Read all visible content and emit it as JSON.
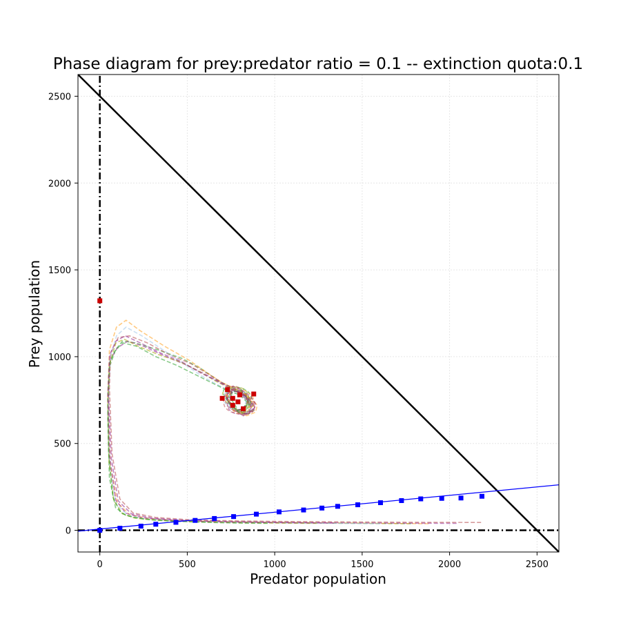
{
  "chart_data": {
    "type": "line",
    "title": "Phase diagram for prey:predator ratio = 0.1 -- extinction quota:0.1",
    "xlabel": "Predator population",
    "ylabel": "Prey population",
    "xlim": [
      -125,
      2625
    ],
    "ylim": [
      -125,
      2625
    ],
    "xticks": [
      0,
      500,
      1000,
      1500,
      2000,
      2500
    ],
    "yticks": [
      0,
      500,
      1000,
      1500,
      2000,
      2500
    ],
    "xtick_labels": [
      "0",
      "500",
      "1000",
      "1500",
      "2000",
      "2500"
    ],
    "ytick_labels": [
      "0",
      "500",
      "1000",
      "1500",
      "2000",
      "2500"
    ],
    "grid": true,
    "reference_lines": [
      {
        "name": "x = 0",
        "style": "dash-dot",
        "color": "#000000",
        "x": [
          0,
          0
        ],
        "y": [
          -125,
          2625
        ]
      },
      {
        "name": "y = 0",
        "style": "dash-dot",
        "color": "#000000",
        "x": [
          -125,
          2625
        ],
        "y": [
          0,
          0
        ]
      },
      {
        "name": "x + y = 2500",
        "style": "solid",
        "color": "#000000",
        "x": [
          -125,
          2625
        ],
        "y": [
          2625,
          -125
        ]
      },
      {
        "name": "initial-condition line",
        "style": "solid",
        "color": "#0000ff",
        "x": [
          -125,
          2625
        ],
        "y": [
          -5,
          262
        ]
      }
    ],
    "initial_points": {
      "color": "#0000ff",
      "x": [
        0,
        115,
        235,
        320,
        435,
        545,
        655,
        765,
        895,
        1025,
        1165,
        1270,
        1360,
        1475,
        1605,
        1725,
        1835,
        1955,
        2065,
        2185
      ],
      "y": [
        0,
        12,
        24,
        35,
        46,
        57,
        68,
        79,
        93,
        106,
        117,
        128,
        138,
        147,
        159,
        171,
        181,
        184,
        186,
        196
      ]
    },
    "final_points": {
      "color": "#cc0000",
      "x": [
        0,
        730,
        760,
        790,
        820,
        880,
        700,
        760,
        800
      ],
      "y": [
        1322,
        810,
        760,
        740,
        700,
        785,
        760,
        720,
        780
      ]
    },
    "trajectory_colors": [
      "#2ca02c",
      "#ff9f1c",
      "#8e1f8e",
      "#b5484a",
      "#9fc5e8",
      "#a6a600"
    ],
    "trajectories": [
      {
        "color": "#2ca02c",
        "x": [
          1780,
          1500,
          1200,
          900,
          600,
          400,
          250,
          150,
          90,
          55,
          45,
          55,
          90,
          130,
          200,
          330,
          470,
          580,
          680,
          760,
          830,
          870,
          880,
          850,
          790,
          740,
          760,
          810,
          850,
          830,
          790
        ],
        "y": [
          38,
          40,
          42,
          45,
          50,
          55,
          65,
          85,
          130,
          300,
          650,
          940,
          1040,
          1090,
          1080,
          1040,
          990,
          930,
          860,
          820,
          780,
          730,
          690,
          670,
          690,
          740,
          800,
          810,
          760,
          700,
          690
        ]
      },
      {
        "color": "#ff9f1c",
        "x": [
          1880,
          1600,
          1300,
          1000,
          700,
          450,
          280,
          170,
          100,
          60,
          45,
          55,
          95,
          150,
          230,
          370,
          510,
          610,
          700,
          790,
          860,
          900,
          890,
          840,
          770,
          720,
          760,
          820,
          870,
          830,
          780
        ],
        "y": [
          38,
          40,
          43,
          46,
          50,
          56,
          68,
          90,
          160,
          380,
          760,
          1040,
          1170,
          1210,
          1150,
          1060,
          980,
          910,
          850,
          810,
          770,
          720,
          680,
          660,
          690,
          760,
          810,
          790,
          740,
          690,
          680
        ]
      },
      {
        "color": "#8e1f8e",
        "x": [
          2040,
          1750,
          1400,
          1050,
          750,
          500,
          300,
          180,
          105,
          65,
          50,
          58,
          100,
          160,
          250,
          380,
          500,
          600,
          690,
          770,
          840,
          880,
          870,
          820,
          760,
          720,
          750,
          800,
          850,
          820,
          770
        ],
        "y": [
          40,
          41,
          43,
          46,
          51,
          57,
          70,
          95,
          170,
          420,
          780,
          980,
          1050,
          1090,
          1060,
          1000,
          950,
          900,
          850,
          810,
          770,
          720,
          680,
          660,
          700,
          770,
          810,
          790,
          740,
          690,
          700
        ]
      },
      {
        "color": "#b5484a",
        "x": [
          2180,
          1850,
          1500,
          1150,
          800,
          520,
          320,
          190,
          115,
          70,
          55,
          62,
          105,
          170,
          270,
          400,
          520,
          620,
          700,
          780,
          850,
          890,
          880,
          820,
          760,
          720,
          750,
          800,
          860,
          820,
          770
        ],
        "y": [
          45,
          46,
          48,
          50,
          54,
          60,
          74,
          100,
          180,
          440,
          820,
          1020,
          1110,
          1120,
          1080,
          1010,
          960,
          900,
          850,
          810,
          770,
          730,
          690,
          660,
          700,
          770,
          810,
          790,
          740,
          690,
          700
        ]
      },
      {
        "color": "#9fc5e8",
        "x": [
          1600,
          1350,
          1100,
          850,
          620,
          420,
          260,
          160,
          95,
          58,
          48,
          58,
          95,
          150,
          240,
          360,
          480,
          580,
          670,
          750,
          820,
          860,
          860,
          820,
          760,
          720,
          760,
          810,
          840,
          820,
          780
        ],
        "y": [
          38,
          40,
          42,
          45,
          50,
          55,
          66,
          88,
          150,
          350,
          700,
          980,
          1120,
          1170,
          1120,
          1040,
          960,
          890,
          840,
          800,
          770,
          720,
          690,
          670,
          700,
          750,
          800,
          800,
          750,
          700,
          690
        ]
      },
      {
        "color": "#a6a600",
        "x": [
          1240,
          1050,
          850,
          650,
          480,
          330,
          200,
          130,
          80,
          52,
          46,
          56,
          92,
          140,
          220,
          340,
          460,
          560,
          660,
          740,
          820,
          860,
          870,
          830,
          770,
          730,
          760,
          810,
          850,
          820,
          780
        ],
        "y": [
          40,
          41,
          43,
          47,
          52,
          58,
          70,
          95,
          170,
          400,
          720,
          960,
          1080,
          1100,
          1060,
          1010,
          970,
          920,
          860,
          820,
          780,
          730,
          690,
          670,
          700,
          760,
          800,
          800,
          750,
          700,
          690
        ]
      },
      {
        "color": "#2ca02c",
        "x": [
          960,
          820,
          680,
          540,
          410,
          290,
          190,
          120,
          75,
          50,
          45,
          55,
          85,
          130,
          210,
          320,
          440,
          540,
          640,
          720,
          800,
          850,
          860,
          820,
          760,
          720,
          760,
          810,
          850,
          820,
          780
        ],
        "y": [
          40,
          41,
          44,
          48,
          53,
          60,
          75,
          100,
          190,
          450,
          760,
          960,
          1030,
          1080,
          1060,
          1000,
          950,
          900,
          850,
          810,
          780,
          730,
          690,
          670,
          700,
          760,
          800,
          800,
          750,
          700,
          690
        ]
      },
      {
        "color": "#8e1f8e",
        "x": [
          1340,
          1150,
          950,
          750,
          560,
          390,
          240,
          150,
          90,
          56,
          46,
          56,
          92,
          145,
          230,
          350,
          470,
          570,
          670,
          750,
          820,
          860,
          870,
          830,
          770,
          730,
          760,
          810,
          850,
          820,
          780
        ],
        "y": [
          42,
          43,
          45,
          48,
          53,
          60,
          73,
          98,
          175,
          430,
          790,
          1010,
          1090,
          1120,
          1080,
          1020,
          970,
          910,
          860,
          815,
          780,
          730,
          690,
          670,
          700,
          760,
          800,
          800,
          750,
          700,
          690
        ]
      }
    ]
  }
}
